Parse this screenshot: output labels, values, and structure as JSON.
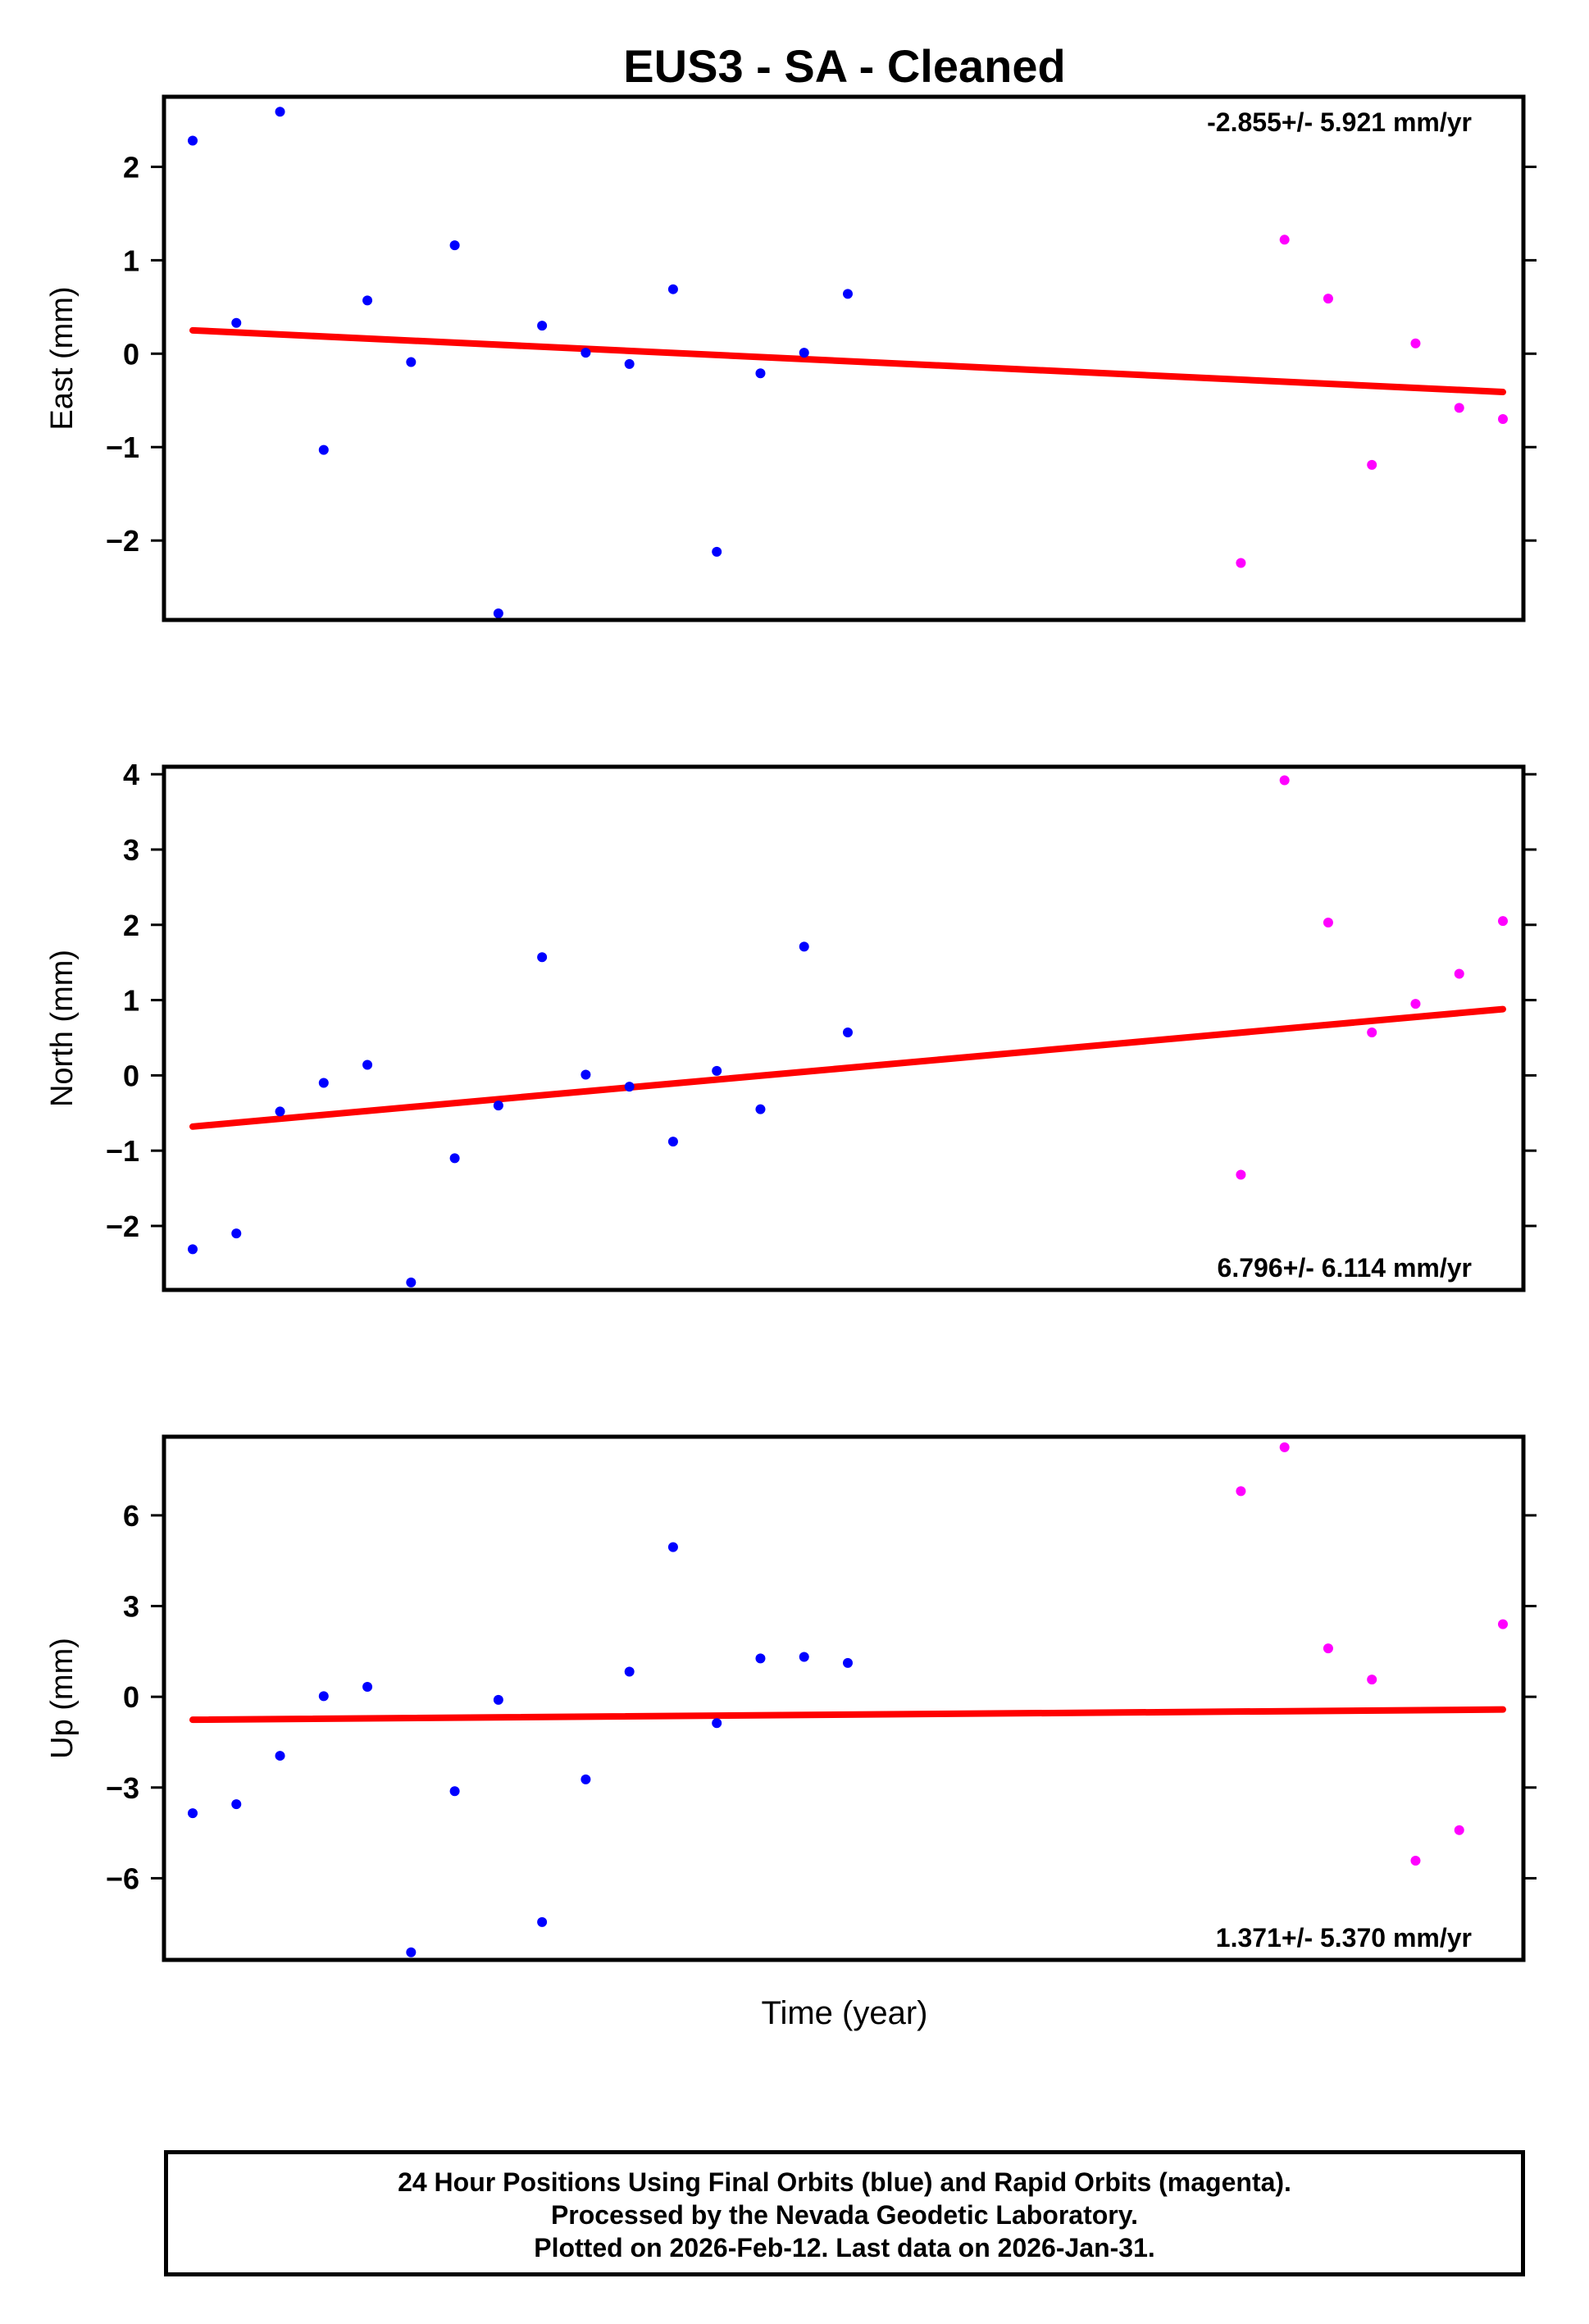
{
  "chart_data": {
    "type": "scatter",
    "title": "EUS3  - SA - Cleaned",
    "xlabel": "Time (year)",
    "colors": {
      "final": "#0000ff",
      "rapid": "#ff00ff",
      "fit": "#ff0000"
    },
    "panels": [
      {
        "name": "east",
        "ylabel": "East (mm)",
        "rate_label": "-2.855+/- 5.921 mm/yr",
        "rate_position": "top-right",
        "ylim": [
          -2.85,
          2.75
        ],
        "yticks": [
          {
            "value": 2,
            "label": "2"
          },
          {
            "value": 1,
            "label": "1"
          },
          {
            "value": 0,
            "label": "0"
          },
          {
            "value": -1,
            "label": "−1"
          },
          {
            "value": -2,
            "label": "−2"
          }
        ],
        "fit": {
          "start": 0.25,
          "end": -0.41
        },
        "final": [
          2.28,
          0.33,
          2.59,
          -1.03,
          0.57,
          -0.09,
          1.16,
          -2.78,
          0.3,
          0.01,
          -0.11,
          0.69,
          -2.12,
          -0.21,
          0.01,
          0.64
        ],
        "rapid": [
          null,
          null,
          null,
          null,
          null,
          null,
          null,
          null,
          null,
          null,
          null,
          null,
          null,
          null,
          null,
          null,
          null,
          null,
          null,
          null,
          null,
          null,
          null,
          null,
          -2.24,
          1.22,
          0.59,
          -1.19,
          0.11,
          -0.58,
          -0.7
        ]
      },
      {
        "name": "north",
        "ylabel": "North (mm)",
        "rate_label": "6.796+/- 6.114 mm/yr",
        "rate_position": "bottom-right",
        "ylim": [
          -2.85,
          4.1
        ],
        "yticks": [
          {
            "value": 4,
            "label": "4"
          },
          {
            "value": 3,
            "label": "3"
          },
          {
            "value": 2,
            "label": "2"
          },
          {
            "value": 1,
            "label": "1"
          },
          {
            "value": 0,
            "label": "0"
          },
          {
            "value": -1,
            "label": "−1"
          },
          {
            "value": -2,
            "label": "−2"
          }
        ],
        "fit": {
          "start": -0.68,
          "end": 0.88
        },
        "final": [
          -2.31,
          -2.1,
          -0.48,
          -0.1,
          0.14,
          -2.75,
          -1.1,
          -0.4,
          1.57,
          0.01,
          -0.15,
          -0.88,
          0.06,
          -0.45,
          1.71,
          0.57
        ],
        "rapid": [
          null,
          null,
          null,
          null,
          null,
          null,
          null,
          null,
          null,
          null,
          null,
          null,
          null,
          null,
          null,
          null,
          null,
          null,
          null,
          null,
          null,
          null,
          null,
          null,
          -1.32,
          3.92,
          2.03,
          0.57,
          0.95,
          1.35,
          2.05
        ]
      },
      {
        "name": "up",
        "ylabel": "Up (mm)",
        "rate_label": "1.371+/- 5.370 mm/yr",
        "rate_position": "bottom-right",
        "ylim": [
          -8.7,
          8.6
        ],
        "yticks": [
          {
            "value": 6,
            "label": "6"
          },
          {
            "value": 3,
            "label": "3"
          },
          {
            "value": 0,
            "label": "0"
          },
          {
            "value": -3,
            "label": "−3"
          },
          {
            "value": -6,
            "label": "−6"
          }
        ],
        "fit": {
          "start": -0.76,
          "end": -0.42
        },
        "final": [
          -3.85,
          -3.55,
          -1.95,
          0.02,
          0.33,
          -8.45,
          -3.12,
          -0.1,
          -7.45,
          -2.73,
          0.83,
          4.95,
          -0.87,
          1.27,
          1.32,
          1.12
        ],
        "rapid": [
          null,
          null,
          null,
          null,
          null,
          null,
          null,
          null,
          null,
          null,
          null,
          null,
          null,
          null,
          null,
          null,
          null,
          null,
          null,
          null,
          null,
          null,
          null,
          null,
          6.8,
          8.25,
          1.6,
          0.57,
          -5.42,
          -4.41,
          2.4
        ]
      }
    ]
  },
  "footer": {
    "line1": "24 Hour Positions Using Final Orbits (blue) and Rapid Orbits (magenta).",
    "line2": "Processed by the Nevada Geodetic Laboratory.",
    "line3": "Plotted on 2026-Feb-12. Last data on 2026-Jan-31."
  }
}
